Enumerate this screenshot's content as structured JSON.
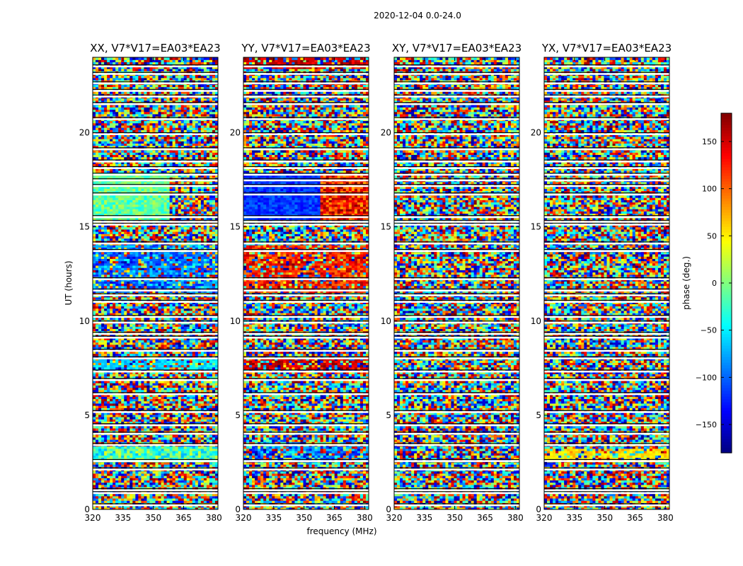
{
  "figure_title": "2020-12-04 0.0-24.0",
  "chart_data": {
    "type": "heatmap",
    "suptitle": "2020-12-04 0.0-24.0",
    "xlabel": "frequency (MHz)",
    "ylabel": "UT (hours)",
    "xlim": [
      320,
      382
    ],
    "ylim": [
      0,
      24
    ],
    "xticks": [
      320,
      335,
      350,
      365,
      380
    ],
    "yticks": [
      0,
      5,
      10,
      15,
      20
    ],
    "colormap": "jet",
    "panels": [
      {
        "title": "XX, V7*V17=EA03*EA23",
        "pattern": "xx"
      },
      {
        "title": "YY, V7*V17=EA03*EA23",
        "pattern": "yy"
      },
      {
        "title": "XY, V7*V17=EA03*EA23",
        "pattern": "noise"
      },
      {
        "title": "YX, V7*V17=EA03*EA23",
        "pattern": "noise_warm"
      }
    ],
    "colorbar": {
      "label": "phase (deg.)",
      "range": [
        -180,
        180
      ],
      "ticks": [
        -150,
        -100,
        -50,
        0,
        50,
        100,
        150
      ],
      "tick_labels": [
        "−150",
        "−100",
        "−50",
        "0",
        "50",
        "100",
        "150"
      ]
    },
    "flagged_utc_hours": [
      0.3,
      0.95,
      1.1,
      2.2,
      2.65,
      3.5,
      4.1,
      4.55,
      5.25,
      6.2,
      6.95,
      7.4,
      8.1,
      8.5,
      9.2,
      9.4,
      10.0,
      10.3,
      11.1,
      11.45,
      11.7,
      12.3,
      13.8,
      14.2,
      15.2,
      15.35,
      15.6,
      16.8,
      17.25,
      17.55,
      17.85,
      18.2,
      18.55,
      19.2,
      20.0,
      20.8,
      21.6,
      22.0,
      22.3,
      22.7,
      23.2,
      23.6
    ]
  }
}
